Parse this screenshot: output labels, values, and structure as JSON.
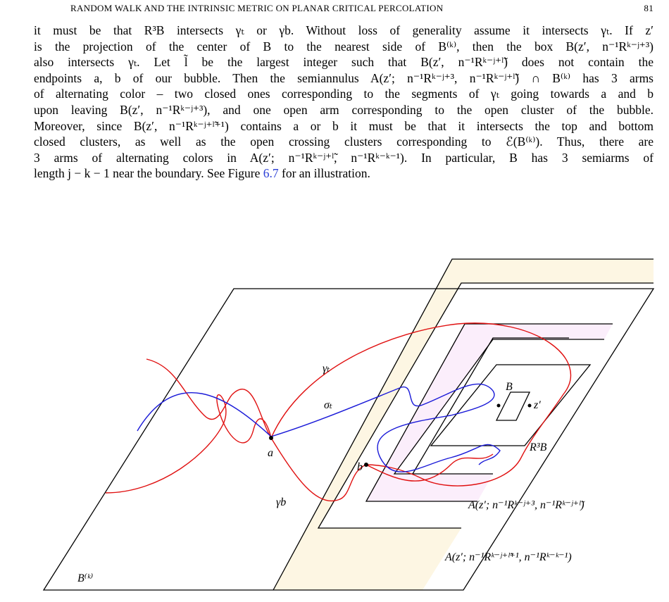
{
  "header": {
    "title": "RANDOM WALK AND THE INTRINSIC METRIC ON PLANAR CRITICAL PERCOLATION",
    "page": "81"
  },
  "paragraph": {
    "lines": [
      "it must be that R³B intersects γₜ or γb. Without loss of generality assume it intersects γₜ. If z′",
      "is the projection of the center of B to the nearest side of B⁽ᵏ⁾, then the box B(z′, n⁻¹Rᵏ⁻ʲ⁺³)",
      "also intersects γₜ. Let l̃ be the largest integer such that B(z′, n⁻¹Rᵏ⁻ʲ⁺ˡ̃) does not contain the",
      "endpoints a, b of our bubble. Then the semiannulus A(z′; n⁻¹Rᵏ⁻ʲ⁺³, n⁻¹Rᵏ⁻ʲ⁺ˡ̃) ∩ B⁽ᵏ⁾ has 3 arms",
      "of alternating color – two closed ones corresponding to the segments of γₜ going towards a and b",
      "upon leaving B(z′, n⁻¹Rᵏ⁻ʲ⁺³), and one open arm corresponding to the open cluster of the bubble.",
      "Moreover, since B(z′, n⁻¹Rᵏ⁻ʲ⁺ˡ̃⁺¹) contains a or b it must be that it intersects the top and bottom",
      "closed clusters, as well as the open crossing clusters corresponding to ℰ(B⁽ᵏ⁾). Thus, there are",
      "3 arms of alternating colors in A(z′; n⁻¹Rᵏ⁻ʲ⁺ˡ̃, n⁻¹Rᵏ⁻ᵏ⁻¹). In particular, B has 3 semiarms of"
    ],
    "last_line": {
      "before": "length j − k − 1 near the boundary. See Figure ",
      "link": "6.7",
      "after": " for an illustration."
    }
  },
  "figure": {
    "labels": {
      "gamma_t": "γₜ",
      "sigma_t": "σₜ",
      "a": "a",
      "gamma_b": "γb",
      "b": "b",
      "B": "B",
      "z": "z′",
      "R3B": "R³B",
      "Bk": "B⁽ᵏ⁾",
      "annulus_inner": "A(z′; n⁻¹Rᵏ⁻ʲ⁺³, n⁻¹Rᵏ⁻ʲ⁺ˡ̃)",
      "annulus_outer": "A(z′; n⁻¹Rᵏ⁻ʲ⁺ˡ̃⁺¹, n⁻¹Rᵏ⁻ᵏ⁻¹)"
    }
  }
}
